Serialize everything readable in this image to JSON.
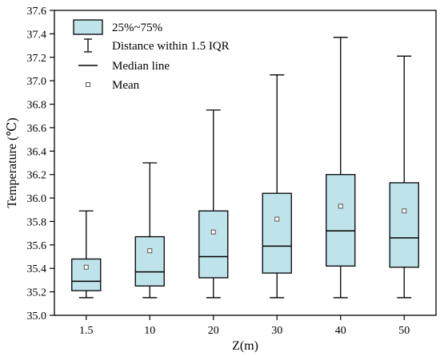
{
  "chart_data": {
    "type": "box",
    "xlabel": "Z(m)",
    "ylabel": "Temperature (℃)",
    "ylim": [
      35.0,
      37.6
    ],
    "ytick_step": 0.2,
    "categories": [
      "1.5",
      "10",
      "20",
      "30",
      "40",
      "50"
    ],
    "boxes": [
      {
        "whisker_low": 35.15,
        "q1": 35.21,
        "median": 35.29,
        "q3": 35.48,
        "whisker_high": 35.89,
        "mean": 35.41
      },
      {
        "whisker_low": 35.15,
        "q1": 35.25,
        "median": 35.37,
        "q3": 35.67,
        "whisker_high": 36.3,
        "mean": 35.55
      },
      {
        "whisker_low": 35.15,
        "q1": 35.32,
        "median": 35.5,
        "q3": 35.89,
        "whisker_high": 36.75,
        "mean": 35.71
      },
      {
        "whisker_low": 35.15,
        "q1": 35.36,
        "median": 35.59,
        "q3": 36.04,
        "whisker_high": 37.05,
        "mean": 35.82
      },
      {
        "whisker_low": 35.15,
        "q1": 35.42,
        "median": 35.72,
        "q3": 36.2,
        "whisker_high": 37.37,
        "mean": 35.93
      },
      {
        "whisker_low": 35.15,
        "q1": 35.41,
        "median": 35.66,
        "q3": 36.13,
        "whisker_high": 37.21,
        "mean": 35.89
      }
    ],
    "legend": {
      "placement": "top-left",
      "entries": [
        "25%~75%",
        "Distance within 1.5 IQR",
        "Median line",
        "Mean"
      ]
    },
    "colors": {
      "box_fill": "#bfe3ea",
      "stroke": "#000000"
    },
    "grid": false
  }
}
